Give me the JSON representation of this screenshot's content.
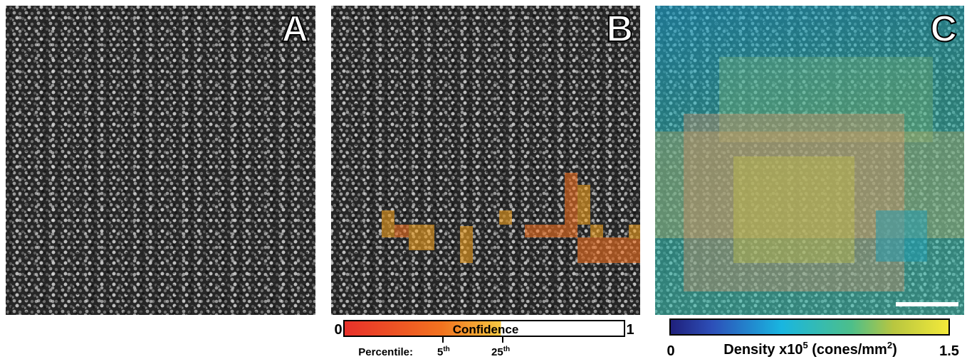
{
  "panels": [
    {
      "label": "A"
    },
    {
      "label": "B"
    },
    {
      "label": "C"
    }
  ],
  "confidence_bar": {
    "min_label": "0",
    "title": "Confidence",
    "max_label": "1",
    "percentile_label": "Percentile:",
    "ticks": [
      {
        "number": "5",
        "suffix": "th"
      },
      {
        "number": "25",
        "suffix": "th"
      }
    ]
  },
  "density_bar": {
    "min_label": "0",
    "title_parts": [
      "Density x10",
      "5",
      " (cones/mm",
      "2",
      ")"
    ],
    "max_label": "1.5"
  }
}
